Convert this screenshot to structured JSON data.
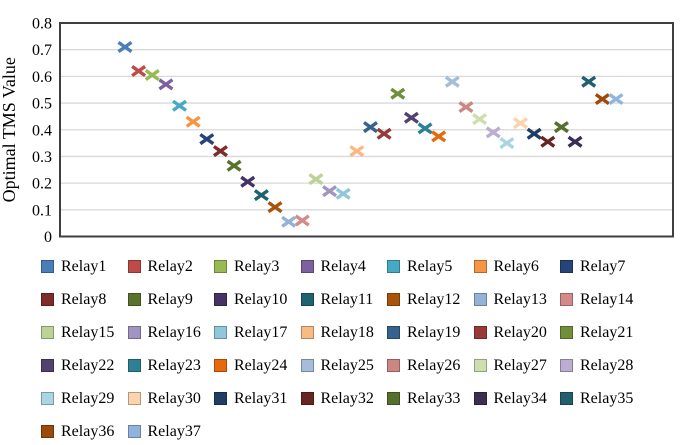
{
  "figure": {
    "background": "#ffffff",
    "border_color": "#3f3f3f",
    "gridline_color": "#d9d9d9"
  },
  "chart_data": {
    "type": "scatter",
    "title": "",
    "xlabel": "",
    "ylabel": "Optimal TMS Value",
    "ylim": [
      0,
      0.8
    ],
    "ytick_labels": [
      "0",
      "0.1",
      "0.2",
      "0.3",
      "0.4",
      "0.5",
      "0.6",
      "0.7",
      "0.8"
    ],
    "ytick_values": [
      0,
      0.1,
      0.2,
      0.3,
      0.4,
      0.5,
      0.6,
      0.7,
      0.8
    ],
    "grid": true,
    "marker_style": "x",
    "legend_position": "bottom",
    "legend_columns": 7,
    "series": [
      {
        "name": "Relay1",
        "value": 0.71,
        "color": "#4A7EBB"
      },
      {
        "name": "Relay2",
        "value": 0.62,
        "color": "#BE4B48"
      },
      {
        "name": "Relay3",
        "value": 0.605,
        "color": "#98B954"
      },
      {
        "name": "Relay4",
        "value": 0.57,
        "color": "#7D60A0"
      },
      {
        "name": "Relay5",
        "value": 0.49,
        "color": "#46AAC5"
      },
      {
        "name": "Relay6",
        "value": 0.43,
        "color": "#F69546"
      },
      {
        "name": "Relay7",
        "value": 0.365,
        "color": "#264478"
      },
      {
        "name": "Relay8",
        "value": 0.32,
        "color": "#7E2B29"
      },
      {
        "name": "Relay9",
        "value": 0.265,
        "color": "#59732C"
      },
      {
        "name": "Relay10",
        "value": 0.205,
        "color": "#463366"
      },
      {
        "name": "Relay11",
        "value": 0.155,
        "color": "#1F6373"
      },
      {
        "name": "Relay12",
        "value": 0.11,
        "color": "#A8540B"
      },
      {
        "name": "Relay13",
        "value": 0.055,
        "color": "#94B2D7"
      },
      {
        "name": "Relay14",
        "value": 0.06,
        "color": "#D38A88"
      },
      {
        "name": "Relay15",
        "value": 0.215,
        "color": "#BCD395"
      },
      {
        "name": "Relay16",
        "value": 0.17,
        "color": "#A294C0"
      },
      {
        "name": "Relay17",
        "value": 0.16,
        "color": "#8FC8DB"
      },
      {
        "name": "Relay18",
        "value": 0.32,
        "color": "#F9BA84"
      },
      {
        "name": "Relay19",
        "value": 0.41,
        "color": "#35638F"
      },
      {
        "name": "Relay20",
        "value": 0.385,
        "color": "#9A3A38"
      },
      {
        "name": "Relay21",
        "value": 0.535,
        "color": "#718F39"
      },
      {
        "name": "Relay22",
        "value": 0.445,
        "color": "#52426F"
      },
      {
        "name": "Relay23",
        "value": 0.405,
        "color": "#2E8096"
      },
      {
        "name": "Relay24",
        "value": 0.375,
        "color": "#E8690B"
      },
      {
        "name": "Relay25",
        "value": 0.58,
        "color": "#A5BDDB"
      },
      {
        "name": "Relay26",
        "value": 0.485,
        "color": "#CC8684"
      },
      {
        "name": "Relay27",
        "value": 0.44,
        "color": "#CEDEAE"
      },
      {
        "name": "Relay28",
        "value": 0.39,
        "color": "#BCAED3"
      },
      {
        "name": "Relay29",
        "value": 0.35,
        "color": "#A9D6E2"
      },
      {
        "name": "Relay30",
        "value": 0.425,
        "color": "#FBD3AC"
      },
      {
        "name": "Relay31",
        "value": 0.385,
        "color": "#1E3F63"
      },
      {
        "name": "Relay32",
        "value": 0.355,
        "color": "#692523"
      },
      {
        "name": "Relay33",
        "value": 0.41,
        "color": "#55702C"
      },
      {
        "name": "Relay34",
        "value": 0.355,
        "color": "#3B2E53"
      },
      {
        "name": "Relay35",
        "value": 0.58,
        "color": "#1F5F6E"
      },
      {
        "name": "Relay36",
        "value": 0.515,
        "color": "#9C4A0A"
      },
      {
        "name": "Relay37",
        "value": 0.515,
        "color": "#90B4DE"
      }
    ]
  }
}
